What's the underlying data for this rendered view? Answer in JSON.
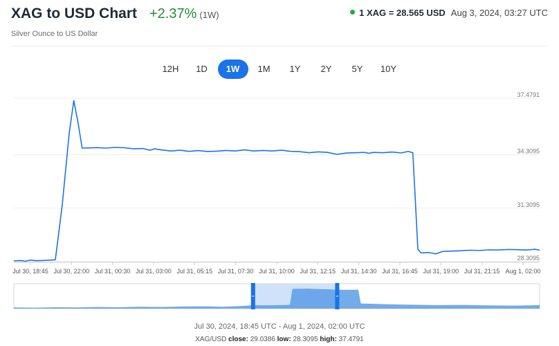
{
  "header": {
    "title": "XAG to USD Chart",
    "change": "+2.37%",
    "change_period": "(1W)",
    "price": "1 XAG = 28.565 USD",
    "timestamp": "Aug 3, 2024, 03:27 UTC",
    "subtitle": "Silver Ounce to US Dollar"
  },
  "colors": {
    "line": "#1a73e8",
    "positive": "#1f8f3a",
    "live_dot": "#1fae3a",
    "accent": "#1a73e8",
    "navigator_fill": "#5b9ce8",
    "navigator_selection": "#cfe2f8"
  },
  "range_tabs": [
    {
      "label": "12H",
      "active": false
    },
    {
      "label": "1D",
      "active": false
    },
    {
      "label": "1W",
      "active": true
    },
    {
      "label": "1M",
      "active": false
    },
    {
      "label": "1Y",
      "active": false
    },
    {
      "label": "2Y",
      "active": false
    },
    {
      "label": "5Y",
      "active": false
    },
    {
      "label": "10Y",
      "active": false
    }
  ],
  "chart_data": {
    "type": "line",
    "ylim": [
      28.3095,
      37.4791
    ],
    "y_ticks": [
      "37.4791",
      "34.3095",
      "31.3095",
      "28.3095"
    ],
    "y_tick_values": [
      37.4791,
      34.3095,
      31.3095,
      28.3095
    ],
    "x_ticks": [
      "Jul 30, 18:45",
      "Jul 30, 22:00",
      "Jul 31, 00:30",
      "Jul 31, 03:00",
      "Jul 31, 05:15",
      "Jul 31, 07:30",
      "Jul 31, 10:00",
      "Jul 31, 12:15",
      "Jul 31, 14:30",
      "Jul 31, 16:45",
      "Jul 31, 19:00",
      "Jul 31, 21:15",
      "Aug 1, 02:00"
    ],
    "grid": true,
    "series": [
      {
        "points": [
          [
            0,
            28.35
          ],
          [
            1.5,
            28.37
          ],
          [
            2.5,
            28.33
          ],
          [
            3.5,
            28.39
          ],
          [
            5,
            28.36
          ],
          [
            7,
            28.38
          ],
          [
            9,
            28.41
          ],
          [
            10.5,
            31.5
          ],
          [
            12,
            35.5
          ],
          [
            13,
            37.35
          ],
          [
            14,
            36.0
          ],
          [
            14.8,
            34.68
          ],
          [
            16,
            34.69
          ],
          [
            18,
            34.71
          ],
          [
            20,
            34.68
          ],
          [
            22,
            34.72
          ],
          [
            24,
            34.7
          ],
          [
            26,
            34.64
          ],
          [
            28,
            34.66
          ],
          [
            29.5,
            34.56
          ],
          [
            30.5,
            34.64
          ],
          [
            32,
            34.58
          ],
          [
            34,
            34.52
          ],
          [
            36,
            34.56
          ],
          [
            38,
            34.5
          ],
          [
            40,
            34.54
          ],
          [
            42,
            34.49
          ],
          [
            44,
            34.51
          ],
          [
            46,
            34.55
          ],
          [
            48,
            34.52
          ],
          [
            50,
            34.58
          ],
          [
            52,
            34.52
          ],
          [
            54,
            34.55
          ],
          [
            56,
            34.52
          ],
          [
            58,
            34.56
          ],
          [
            60,
            34.5
          ],
          [
            62,
            34.48
          ],
          [
            64,
            34.42
          ],
          [
            66,
            34.47
          ],
          [
            68,
            34.44
          ],
          [
            70,
            34.33
          ],
          [
            72,
            34.4
          ],
          [
            74,
            34.42
          ],
          [
            76,
            34.44
          ],
          [
            77,
            34.39
          ],
          [
            78,
            34.44
          ],
          [
            80,
            34.42
          ],
          [
            82,
            34.46
          ],
          [
            84,
            34.41
          ],
          [
            85.5,
            34.49
          ],
          [
            86.5,
            34.42
          ],
          [
            87,
            32.0
          ],
          [
            87.6,
            29.0
          ],
          [
            88.3,
            28.79
          ],
          [
            90,
            28.82
          ],
          [
            91.5,
            28.74
          ],
          [
            93,
            28.88
          ],
          [
            95,
            28.9
          ],
          [
            97,
            28.92
          ],
          [
            99,
            28.95
          ],
          [
            101,
            28.93
          ],
          [
            103,
            28.97
          ],
          [
            105,
            28.96
          ],
          [
            107,
            28.99
          ],
          [
            109,
            28.98
          ],
          [
            111,
            28.96
          ],
          [
            113,
            29.0
          ],
          [
            114,
            28.95
          ]
        ]
      }
    ],
    "range_label": "Jul 30, 2024, 18:45 UTC - Aug 1, 2024, 02:00 UTC",
    "stats": {
      "label": "XAG/USD",
      "close_label": "close:",
      "close": "29.0386",
      "low_label": "low:",
      "low": "28.3095",
      "high_label": "high:",
      "high": "37.4791"
    },
    "navigator": {
      "selection": [
        0.455,
        0.615
      ],
      "series": [
        [
          0,
          0.05
        ],
        [
          0.04,
          0.04
        ],
        [
          0.08,
          0.06
        ],
        [
          0.12,
          0.05
        ],
        [
          0.16,
          0.07
        ],
        [
          0.2,
          0.06
        ],
        [
          0.24,
          0.08
        ],
        [
          0.28,
          0.07
        ],
        [
          0.32,
          0.09
        ],
        [
          0.36,
          0.1
        ],
        [
          0.4,
          0.08
        ],
        [
          0.44,
          0.12
        ],
        [
          0.455,
          0.15
        ],
        [
          0.48,
          0.14
        ],
        [
          0.525,
          0.16
        ],
        [
          0.53,
          0.84
        ],
        [
          0.56,
          0.85
        ],
        [
          0.58,
          0.83
        ],
        [
          0.6,
          0.82
        ],
        [
          0.615,
          0.8
        ],
        [
          0.655,
          0.8
        ],
        [
          0.66,
          0.22
        ],
        [
          0.7,
          0.19
        ],
        [
          0.75,
          0.17
        ],
        [
          0.8,
          0.15
        ],
        [
          0.85,
          0.16
        ],
        [
          0.9,
          0.14
        ],
        [
          0.95,
          0.13
        ],
        [
          1.0,
          0.15
        ]
      ]
    }
  }
}
